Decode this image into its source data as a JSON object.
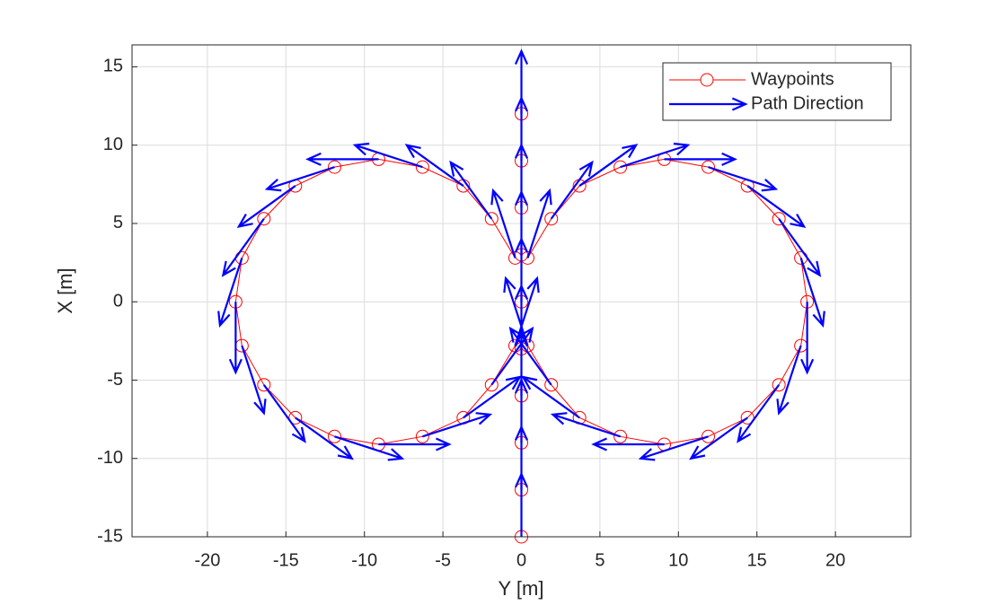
{
  "chart_data": {
    "type": "quiver",
    "xlabel": "Y [m]",
    "ylabel": "X [m]",
    "xlim": [
      -24.8,
      24.8
    ],
    "ylim": [
      -15,
      16.4
    ],
    "xticks": [
      -20,
      -15,
      -10,
      -5,
      0,
      5,
      10,
      15,
      20
    ],
    "yticks": [
      -15,
      -10,
      -5,
      0,
      5,
      10,
      15
    ],
    "grid": true,
    "legend": "northeast",
    "series": [
      {
        "name": "Waypoints",
        "type": "line",
        "color": "#ff0000",
        "marker": "circle",
        "x": [
          0,
          0,
          0,
          0,
          0,
          0,
          0,
          0,
          0,
          0,
          null,
          0.4,
          1.9,
          3.7,
          6.3,
          9.1,
          11.9,
          14.4,
          16.4,
          17.8,
          18.2,
          17.8,
          16.4,
          14.4,
          11.9,
          9.1,
          6.3,
          3.7,
          1.9,
          0.4,
          null,
          -0.4,
          -1.9,
          -3.7,
          -6.3,
          -9.1,
          -11.9,
          -14.4,
          -16.4,
          -17.8,
          -18.2,
          -17.8,
          -16.4,
          -14.4,
          -11.9,
          -9.1,
          -6.3,
          -3.7,
          -1.9,
          -0.4
        ],
        "y": [
          -15,
          -12,
          -9,
          -6,
          -3,
          0,
          3,
          6,
          9,
          12,
          null,
          2.8,
          5.3,
          7.4,
          8.6,
          9.1,
          8.6,
          7.4,
          5.3,
          2.8,
          0,
          -2.8,
          -5.3,
          -7.4,
          -8.6,
          -9.1,
          -8.6,
          -7.4,
          -5.3,
          -2.8,
          null,
          2.8,
          5.3,
          7.4,
          8.6,
          9.1,
          8.6,
          7.4,
          5.3,
          2.8,
          0,
          -2.8,
          -5.3,
          -7.4,
          -8.6,
          -9.1,
          -8.6,
          -7.4,
          -5.3,
          -2.8
        ]
      },
      {
        "name": "Path Direction",
        "type": "quiver",
        "color": "#0000ff",
        "x": [
          0,
          0,
          0,
          0,
          0,
          0,
          0,
          0,
          0,
          0,
          0.4,
          1.9,
          3.7,
          6.3,
          9.1,
          11.9,
          14.4,
          16.4,
          17.8,
          18.2,
          17.8,
          16.4,
          14.4,
          11.9,
          9.1,
          6.3,
          3.7,
          1.9,
          0.4,
          -0.4,
          -1.9,
          -3.7,
          -6.3,
          -9.1,
          -11.9,
          -14.4,
          -16.4,
          -17.8,
          -18.2,
          -17.8,
          -16.4,
          -14.4,
          -11.9,
          -9.1,
          -6.3,
          -3.7,
          -1.9,
          -0.4
        ],
        "y": [
          -15,
          -12,
          -9,
          -6,
          -3,
          0,
          3,
          6,
          9,
          12,
          2.8,
          5.3,
          7.4,
          8.6,
          9.1,
          8.6,
          7.4,
          5.3,
          2.8,
          0,
          -2.8,
          -5.3,
          -7.4,
          -8.6,
          -9.1,
          -8.6,
          -7.4,
          -5.3,
          -2.8,
          2.8,
          5.3,
          7.4,
          8.6,
          9.1,
          8.6,
          7.4,
          5.3,
          2.8,
          0,
          -2.8,
          -5.3,
          -7.4,
          -8.6,
          -9.1,
          -8.6,
          -7.4,
          -5.3,
          -2.8
        ],
        "u": [
          0,
          0,
          0,
          0,
          0,
          0,
          0,
          0,
          0,
          0,
          1.4,
          2.6,
          3.6,
          4.3,
          4.5,
          4.3,
          3.6,
          2.6,
          1.4,
          0,
          -1.4,
          -2.6,
          -3.6,
          -4.3,
          -4.5,
          -4.3,
          -3.6,
          -2.6,
          -1.4,
          -1.4,
          -2.6,
          -3.6,
          -4.3,
          -4.5,
          -4.3,
          -3.6,
          -2.6,
          -1.4,
          0,
          1.4,
          2.6,
          3.6,
          4.3,
          4.5,
          4.3,
          3.6,
          2.6,
          1.4
        ],
        "v": [
          4,
          4,
          4,
          4,
          4,
          4,
          4,
          4,
          4,
          4,
          4.3,
          3.6,
          2.6,
          1.4,
          0,
          -1.4,
          -2.6,
          -3.6,
          -4.3,
          -4.5,
          -4.3,
          -3.6,
          -2.6,
          -1.4,
          0,
          1.4,
          2.6,
          3.6,
          4.3,
          4.3,
          3.6,
          2.6,
          1.4,
          0,
          -1.4,
          -2.6,
          -3.6,
          -4.3,
          -4.5,
          -4.3,
          -3.6,
          -2.6,
          -1.4,
          0,
          1.4,
          2.6,
          3.6,
          4.3
        ]
      }
    ]
  }
}
